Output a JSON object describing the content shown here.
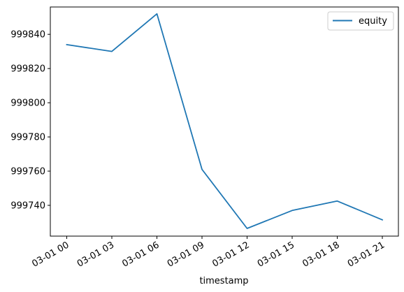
{
  "chart_data": {
    "type": "line",
    "xlabel": "timestamp",
    "ylabel": "",
    "title": "",
    "x": [
      "03-01 00",
      "03-01 03",
      "03-01 06",
      "03-01 09",
      "03-01 12",
      "03-01 15",
      "03-01 18",
      "03-01 21"
    ],
    "series": [
      {
        "name": "equity",
        "color": "#1f77b4",
        "values": [
          999834,
          999830,
          999852,
          999761,
          999726.5,
          999737,
          999742.5,
          999731.5
        ]
      }
    ],
    "yticks": [
      999740,
      999760,
      999780,
      999800,
      999820,
      999840
    ],
    "ylim": [
      999722,
      999856
    ],
    "legend": "top-right",
    "grid": false
  }
}
